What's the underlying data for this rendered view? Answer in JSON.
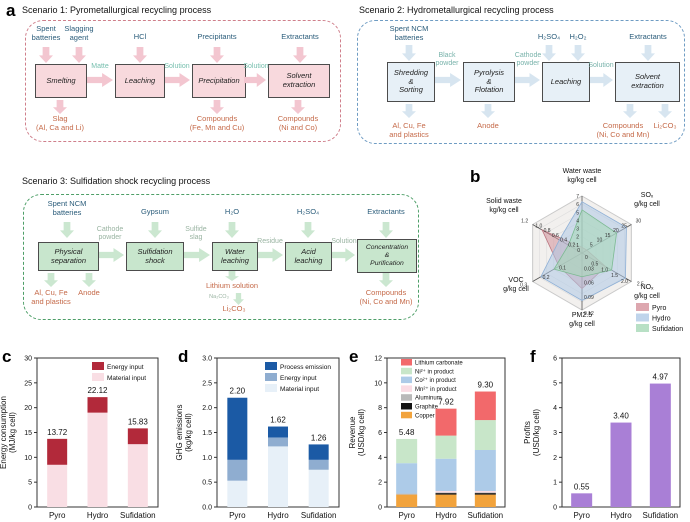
{
  "panel_letters": {
    "a": "a",
    "b": "b",
    "c": "c",
    "d": "d",
    "e": "e",
    "f": "f"
  },
  "scenarios": [
    {
      "title": "Scenario 1: Pyrometallurgical recycling process",
      "inputs": [
        "Spent\nbatteries",
        "Slagging\nagent",
        "HCl",
        "Precipitants",
        "Extractants"
      ],
      "boxes": [
        "Smelting",
        "Leaching",
        "Precipitation",
        "Solvent\nextraction"
      ],
      "flows": [
        "Matte",
        "Solution",
        "Solution"
      ],
      "outputs": [
        "Slag\n(Al, Ca and Li)",
        "Compounds\n(Fe, Mn and Cu)",
        "Compounds\n(Ni and Co)"
      ]
    },
    {
      "title": "Scenario 2: Hydrometallurgical recycling process",
      "inputs": [
        "Spent NCM\nbatteries",
        "H₂SO₄",
        "H₂O₂",
        "Extractants"
      ],
      "boxes": [
        "Shredding\n&\nSorting",
        "Pyrolysis\n&\nFlotation",
        "Leaching",
        "Solvent\nextraction"
      ],
      "flows": [
        "Black\npowder",
        "Cathode\npowder",
        "Solution"
      ],
      "outputs": [
        "Al, Cu, Fe\nand plastics",
        "Anode",
        "Compounds\n(Ni, Co and Mn)",
        "Li₂CO₃"
      ]
    },
    {
      "title": "Scenario 3: Sulfidation shock recycling process",
      "inputs": [
        "Spent NCM\nbatteries",
        "Gypsum",
        "H₂O",
        "H₂SO₄",
        "Extractants"
      ],
      "boxes": [
        "Physical\nseparation",
        "Sulfidation\nshock",
        "Water\nleaching",
        "Acid\nleaching",
        "Concentration\n&\nPurification"
      ],
      "flows": [
        "Cathode\npowder",
        "Sulfide\nslag",
        "Residue",
        "Solution"
      ],
      "outputs": [
        "Al, Cu, Fe\nand plastics",
        "Anode",
        "Lithium solution",
        "Li₂CO₃",
        "Compounds\n(Ni, Co and Mn)"
      ],
      "reagent_label": "Na₂CO₃"
    }
  ],
  "chart_data": [
    {
      "panel": "b",
      "type": "radar",
      "rings": 7,
      "center_tick": "0",
      "axes": [
        {
          "label": "Water waste",
          "unit": "kg/kg cell",
          "max": 7,
          "ticks": [
            "1",
            "2",
            "3",
            "4",
            "5",
            "6",
            "7"
          ]
        },
        {
          "label": "SOₓ",
          "unit": "g/kg cell",
          "max": 30,
          "ticks": [
            "5",
            "10",
            "15",
            "20",
            "25",
            "30"
          ]
        },
        {
          "label": "NOₓ",
          "unit": "g/kg cell",
          "max": 2.5,
          "ticks": [
            "0.5",
            "1.0",
            "1.5",
            "2.0",
            "2.5"
          ]
        },
        {
          "label": "PM2.5",
          "unit": "g/kg cell",
          "max": 0.12,
          "ticks": [
            "0.03",
            "0.06",
            "0.09",
            "0.12"
          ]
        },
        {
          "label": "VOC",
          "unit": "g/kg cell",
          "max": 0.3,
          "ticks": [
            "0.1",
            "0.2",
            "0.3"
          ]
        },
        {
          "label": "Solid waste",
          "unit": "kg/kg cell",
          "max": 1.2,
          "ticks": [
            "0.2",
            "0.4",
            "0.6",
            "0.8",
            "1.0",
            "1.2"
          ]
        }
      ],
      "series": [
        {
          "name": "Pyro",
          "color": "#d4919b",
          "stroke": "#bb7680",
          "values": [
            0.7,
            3,
            1.2,
            0.075,
            0.14,
            0.97
          ]
        },
        {
          "name": "Hydro",
          "color": "#afc9e6",
          "stroke": "#8fb0d6",
          "values": [
            6.3,
            27,
            2.2,
            0.1,
            0.25,
            0.55
          ]
        },
        {
          "name": "Sufidation",
          "color": "#a6d8b6",
          "stroke": "#7cba92",
          "values": [
            5.3,
            21,
            1.5,
            0.05,
            0.17,
            0.33
          ]
        }
      ],
      "legend": [
        "Pyro",
        "Hydro",
        "Sufidation"
      ]
    },
    {
      "panel": "c",
      "type": "bar",
      "stacked": true,
      "ylabel": "Energy consumption\n(MJ/kg cell)",
      "ylim": [
        0,
        30
      ],
      "yticks": [
        "0",
        "5",
        "10",
        "15",
        "20",
        "25",
        "30"
      ],
      "categories": [
        "Pyro",
        "Hydro",
        "Sufidation"
      ],
      "series": [
        {
          "name": "Material input",
          "color": "#f9dee4",
          "values": [
            8.5,
            19.0,
            12.65
          ]
        },
        {
          "name": "Energy input",
          "color": "#b2293a",
          "values": [
            5.22,
            3.12,
            3.18
          ]
        }
      ],
      "totals": [
        "13.72",
        "22.12",
        "15.83"
      ],
      "legend": [
        "Energy input",
        "Material input"
      ]
    },
    {
      "panel": "d",
      "type": "bar",
      "stacked": true,
      "ylabel": "GHG emissions\n(kg/kg cell)",
      "ylim": [
        0,
        3
      ],
      "yticks": [
        "0.0",
        "0.5",
        "1.0",
        "1.5",
        "2.0",
        "2.5",
        "3.0"
      ],
      "categories": [
        "Pyro",
        "Hydro",
        "Sufidation"
      ],
      "series": [
        {
          "name": "Material input",
          "color": "#e7f0f8",
          "values": [
            0.53,
            1.22,
            0.75
          ]
        },
        {
          "name": "Energy input",
          "color": "#8fadd0",
          "values": [
            0.42,
            0.18,
            0.2
          ]
        },
        {
          "name": "Process emission",
          "color": "#1b5aa5",
          "values": [
            1.25,
            0.22,
            0.31
          ]
        }
      ],
      "totals": [
        "2.20",
        "1.62",
        "1.26"
      ],
      "legend": [
        "Process emission",
        "Energy input",
        "Material input"
      ]
    },
    {
      "panel": "e",
      "type": "bar",
      "stacked": true,
      "ylabel": "Revenue\n(USD/kg cell)",
      "ylim": [
        0,
        12
      ],
      "yticks": [
        "0",
        "2",
        "4",
        "6",
        "8",
        "10",
        "12"
      ],
      "categories": [
        "Pyro",
        "Hydro",
        "Sufidation"
      ],
      "series": [
        {
          "name": "Copper",
          "color": "#f2a33c",
          "values": [
            1.0,
            1.0,
            1.0
          ]
        },
        {
          "name": "Graphite",
          "color": "#141414",
          "values": [
            0,
            0.12,
            0.12
          ]
        },
        {
          "name": "Aluminum",
          "color": "#b9b9b9",
          "values": [
            0.08,
            0.05,
            0.05
          ]
        },
        {
          "name": "Mn²⁺ in product",
          "color": "#fadce4",
          "values": [
            0,
            0.12,
            0.12
          ]
        },
        {
          "name": "Co²⁺ in product",
          "color": "#adcbe8",
          "values": [
            2.45,
            2.6,
            3.3
          ]
        },
        {
          "name": "Ni²⁺ in product",
          "color": "#c8e6c9",
          "values": [
            1.95,
            1.86,
            2.41
          ]
        },
        {
          "name": "Lithium carbonate",
          "color": "#f2696b",
          "values": [
            0,
            2.17,
            2.3
          ]
        }
      ],
      "totals": [
        "5.48",
        "7.92",
        "9.30"
      ],
      "legend": [
        "Lithium carbonate",
        "Ni²⁺ in product",
        "Co²⁺ in product",
        "Mn²⁺ in product",
        "Aluminum",
        "Graphite",
        "Copper"
      ]
    },
    {
      "panel": "f",
      "type": "bar",
      "stacked": false,
      "ylabel": "Profits\n(USD/kg cell)",
      "ylim": [
        0,
        6
      ],
      "yticks": [
        "0",
        "1",
        "2",
        "3",
        "4",
        "5",
        "6"
      ],
      "categories": [
        "Pyro",
        "Hydro",
        "Sufidation"
      ],
      "series": [
        {
          "name": "Profits",
          "color": "#a97fd6",
          "values": [
            0.55,
            3.4,
            4.97
          ]
        }
      ],
      "totals": [
        "0.55",
        "3.40",
        "4.97"
      ]
    }
  ]
}
